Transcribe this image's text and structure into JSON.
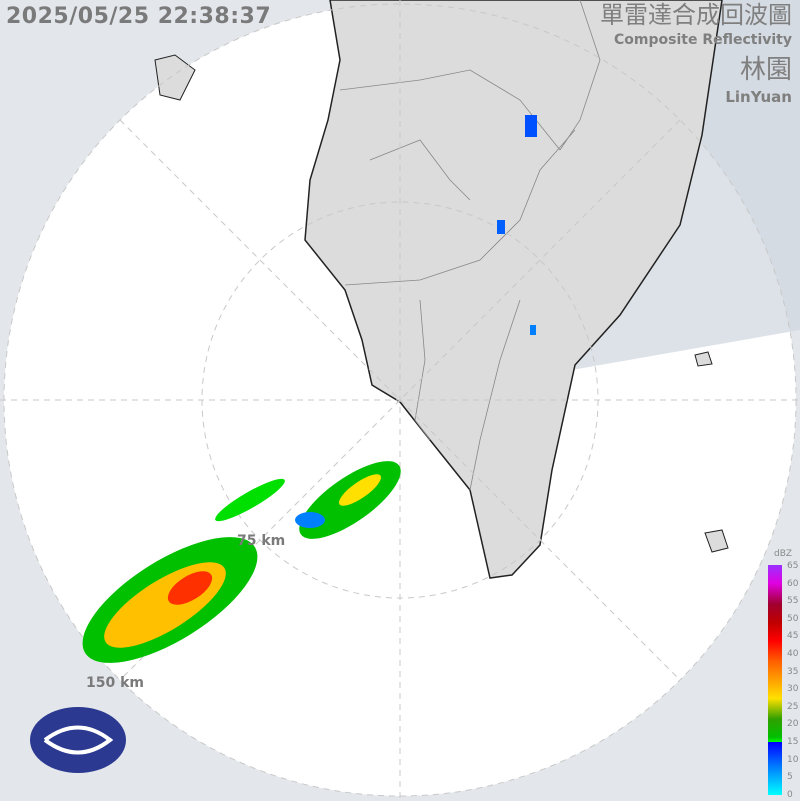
{
  "timestamp": "2025/05/25 22:38:37",
  "title_zh": "單雷達合成回波圖",
  "title_en": "Composite Reflectivity",
  "station_zh": "林園",
  "station_en": "LinYuan",
  "rings": [
    "75 km",
    "150 km"
  ],
  "legend": {
    "unit": "dBZ",
    "ticks": [
      "65",
      "60",
      "55",
      "50",
      "45",
      "40",
      "35",
      "30",
      "25",
      "20",
      "15",
      "10",
      "5",
      "0"
    ]
  },
  "colors": {
    "background": "#e3e7ec",
    "radar_area": "#ffffff",
    "land": "#dcdcdc",
    "sea_shade": "#cdd4dc"
  }
}
